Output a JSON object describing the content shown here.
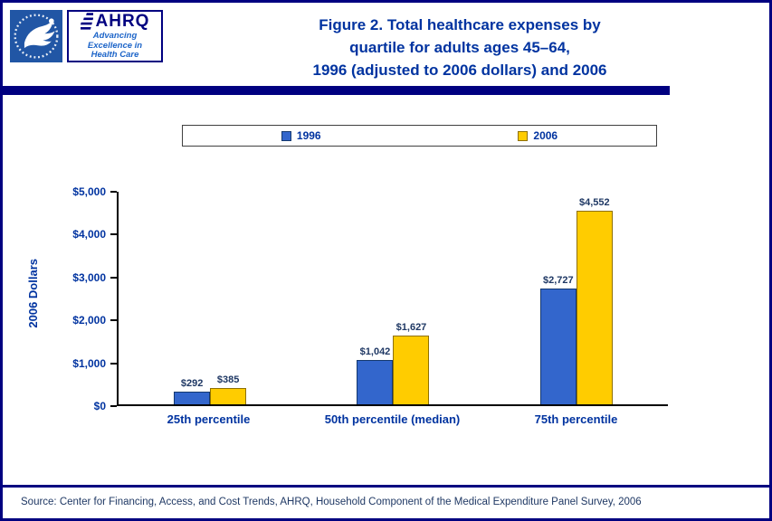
{
  "colors": {
    "navy": "#000080",
    "blue_text": "#0033A0",
    "dark_text": "#1F3864",
    "hhs_blue": "#2156A5",
    "ahrq_tagline_blue": "#1C64C8"
  },
  "header": {
    "hhs_logo_name": "HHS logo",
    "ahrq": {
      "word": "AHRQ",
      "tagline_lines": [
        "Advancing",
        "Excellence in",
        "Health Care"
      ]
    },
    "title_lines": [
      "Figure 2. Total healthcare expenses by",
      "quartile for adults ages 45–64,",
      "1996 (adjusted to 2006 dollars) and 2006"
    ]
  },
  "chart_data": {
    "type": "bar",
    "title": "Figure 2. Total healthcare expenses by quartile for adults ages 45–64, 1996 (adjusted to 2006 dollars) and 2006",
    "categories": [
      "25th percentile",
      "50th percentile (median)",
      "75th percentile"
    ],
    "series": [
      {
        "name": "1996",
        "color": "#3366CC",
        "border_color": "#14386F",
        "values": [
          292,
          1042,
          2727
        ],
        "labels": [
          "$292",
          "$1,042",
          "$2,727"
        ]
      },
      {
        "name": "2006",
        "color": "#FFCC00",
        "border_color": "#8F7000",
        "values": [
          385,
          1627,
          4552
        ],
        "labels": [
          "$385",
          "$1,627",
          "$4,552"
        ]
      }
    ],
    "xlabel": "",
    "ylabel": "2006 Dollars",
    "ylim": [
      0,
      5000
    ],
    "yticks": [
      0,
      1000,
      2000,
      3000,
      4000,
      5000
    ],
    "ytick_labels": [
      "$0",
      "$1,000",
      "$2,000",
      "$3,000",
      "$4,000",
      "$5,000"
    ],
    "legend_position": "top",
    "grid": false
  },
  "footer": {
    "source": "Source: Center for Financing, Access, and Cost Trends, AHRQ, Household Component of the Medical Expenditure Panel Survey, 2006"
  }
}
